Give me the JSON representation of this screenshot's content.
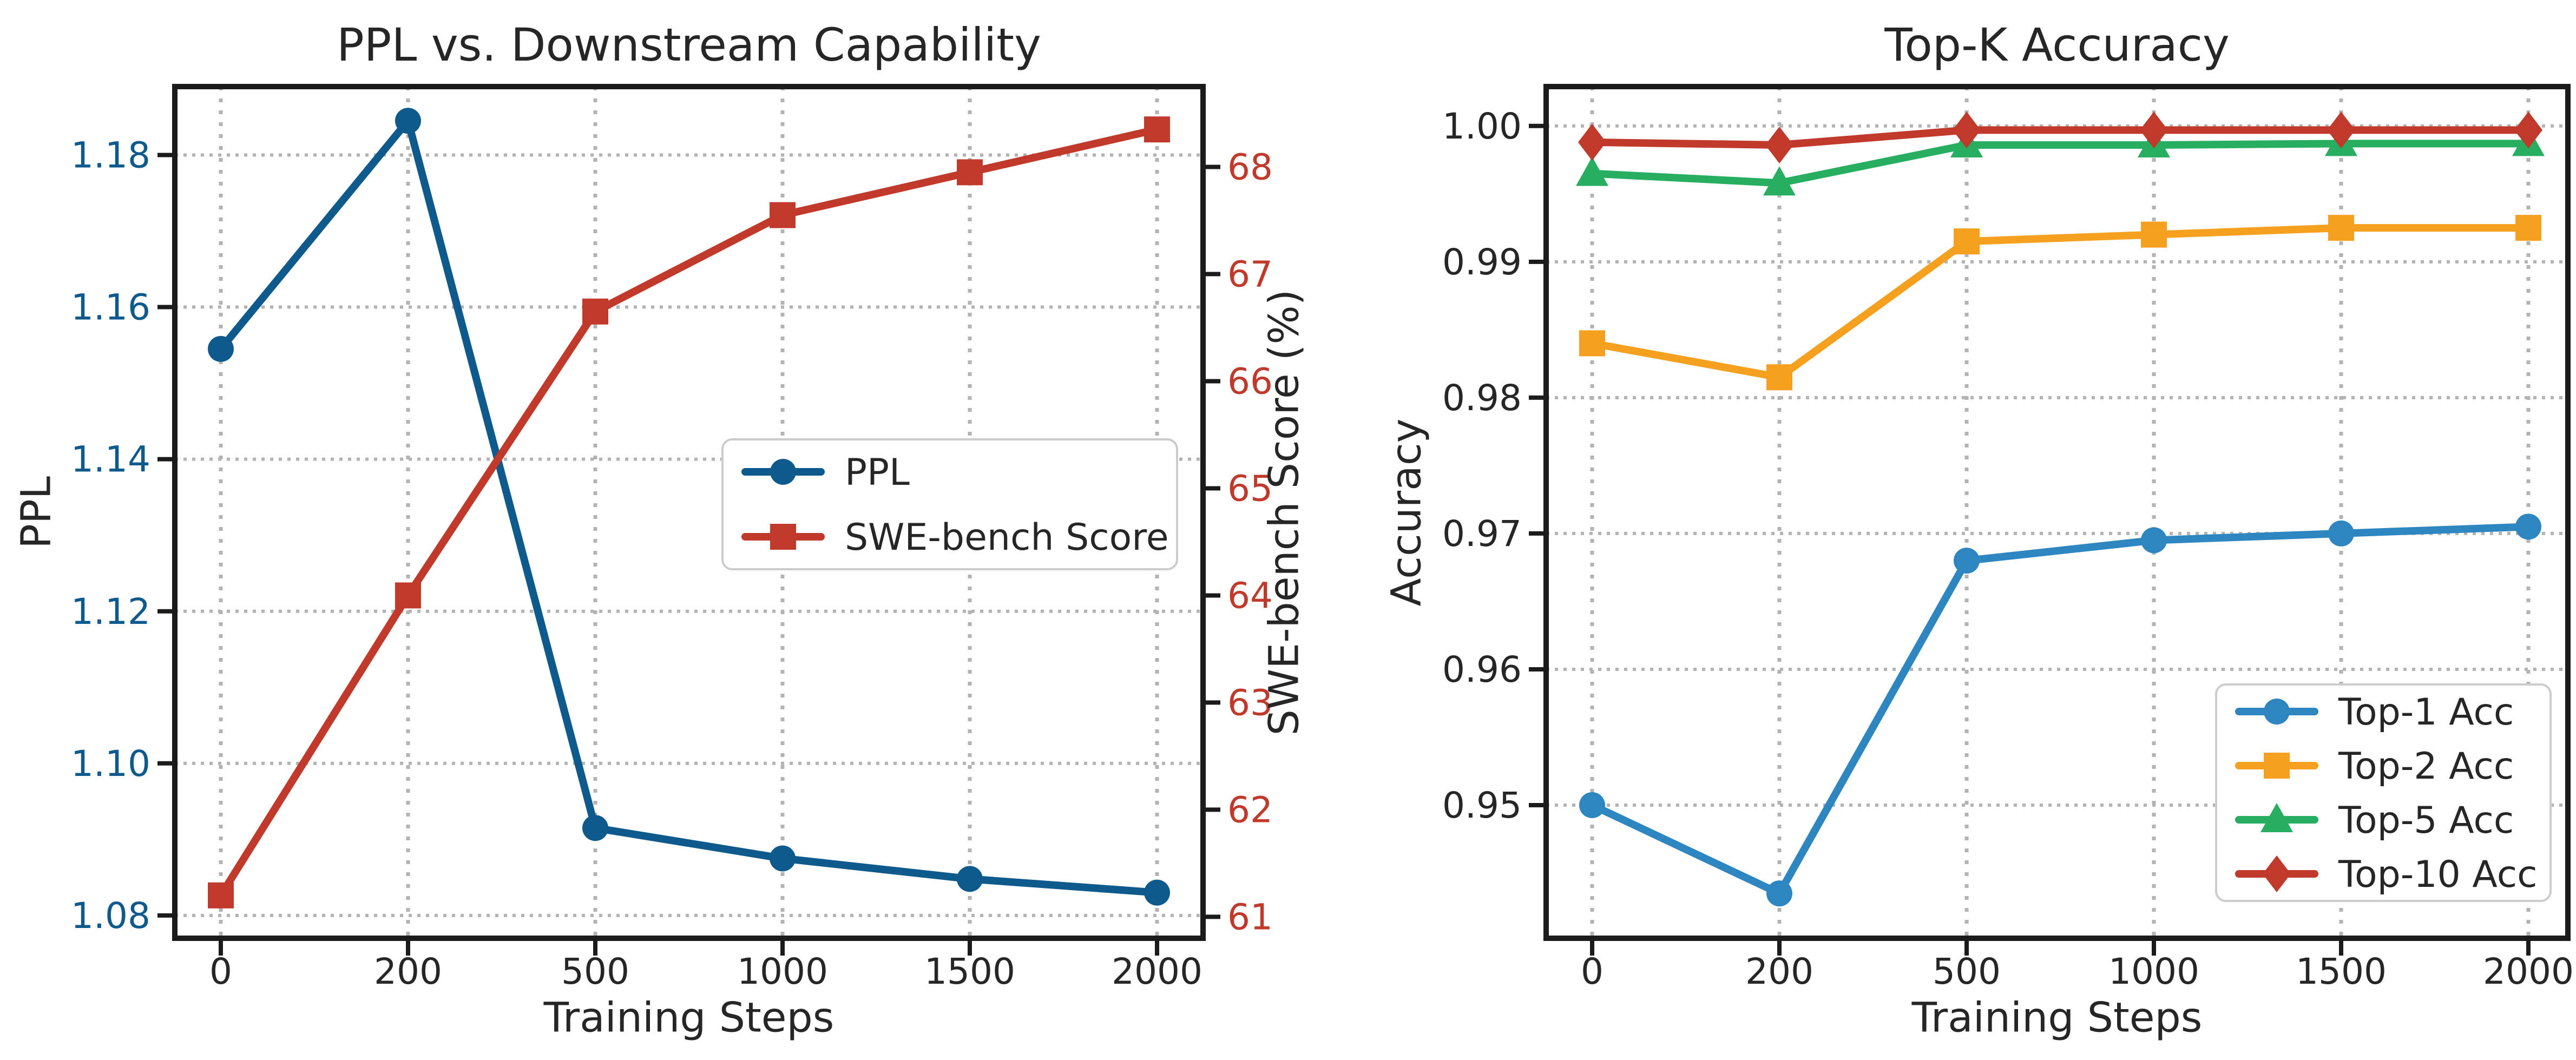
{
  "figure": {
    "background": "#ffffff",
    "text_color": "#262626",
    "spine_color": "#1b1b1b",
    "grid_color": "#b3b3b3",
    "legend_bg": "#ffffff",
    "legend_border": "#cccccc"
  },
  "chart_data": [
    {
      "type": "line",
      "id": "ppl-vs-downstream-chart",
      "title": "PPL vs. Downstream Capability",
      "xlabel": "Training Steps",
      "categories": [
        "0",
        "200",
        "500",
        "1000",
        "1500",
        "2000"
      ],
      "grid": true,
      "legend_position": "center right",
      "axes": {
        "left": {
          "label": "PPL",
          "color": "#0e5a8c",
          "lim": [
            1.077,
            1.189
          ],
          "ticks": [
            "1.08",
            "1.10",
            "1.12",
            "1.14",
            "1.16",
            "1.18"
          ]
        },
        "right": {
          "label": "SWE-bench Score (%)",
          "color": "#c0392b",
          "lim": [
            60.8,
            68.75
          ],
          "ticks": [
            "61",
            "62",
            "63",
            "64",
            "65",
            "66",
            "67",
            "68"
          ]
        }
      },
      "series": [
        {
          "name": "PPL",
          "axis": "left",
          "color": "#0e5a8c",
          "marker": "circle",
          "values": [
            1.1545,
            1.1845,
            1.0915,
            1.0875,
            1.0848,
            1.083
          ]
        },
        {
          "name": "SWE-bench Score",
          "axis": "right",
          "color": "#c0392b",
          "marker": "square",
          "values": [
            61.2,
            64.0,
            66.65,
            67.55,
            67.95,
            68.35
          ]
        }
      ]
    },
    {
      "type": "line",
      "id": "topk-accuracy-chart",
      "title": "Top-K Accuracy",
      "xlabel": "Training Steps",
      "categories": [
        "0",
        "200",
        "500",
        "1000",
        "1500",
        "2000"
      ],
      "grid": true,
      "legend_position": "lower right",
      "axes": {
        "left": {
          "label": "Accuracy",
          "color": "#262626",
          "lim": [
            0.9402,
            1.0029
          ],
          "ticks": [
            "0.95",
            "0.96",
            "0.97",
            "0.98",
            "0.99",
            "1.00"
          ]
        }
      },
      "series": [
        {
          "name": "Top-1 Acc",
          "axis": "left",
          "color": "#2e86c1",
          "marker": "circle",
          "values": [
            0.95,
            0.9435,
            0.968,
            0.9695,
            0.97,
            0.9705
          ]
        },
        {
          "name": "Top-2 Acc",
          "axis": "left",
          "color": "#f5a01e",
          "marker": "square",
          "values": [
            0.984,
            0.9815,
            0.9915,
            0.992,
            0.9925,
            0.9925
          ]
        },
        {
          "name": "Top-5 Acc",
          "axis": "left",
          "color": "#27ae60",
          "marker": "triangle",
          "values": [
            0.9965,
            0.9958,
            0.9986,
            0.9986,
            0.9987,
            0.9987
          ]
        },
        {
          "name": "Top-10 Acc",
          "axis": "left",
          "color": "#c0392b",
          "marker": "diamond",
          "values": [
            0.9988,
            0.9986,
            0.9997,
            0.9997,
            0.9997,
            0.9997
          ]
        }
      ]
    }
  ]
}
